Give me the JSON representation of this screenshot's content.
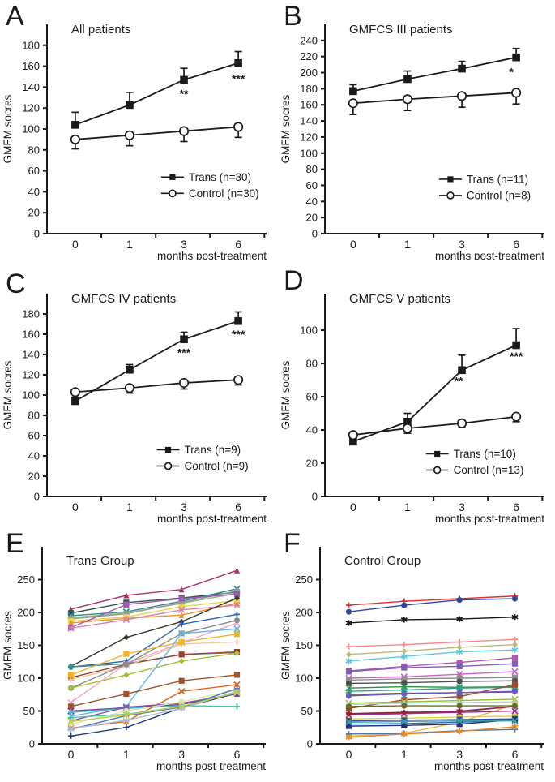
{
  "figure": {
    "x_axis_label": "months post-treatment",
    "y_axis_label": "GMFM socres",
    "axis_color": "#1a1a1a",
    "background": "#ffffff"
  },
  "chart_data": [
    {
      "letter": "A",
      "title": "All patients",
      "type": "line",
      "xlabel": "months post-treatment",
      "ylabel": "GMFM socres",
      "categories": [
        "0",
        "1",
        "3",
        "6"
      ],
      "yticks": [
        0,
        20,
        40,
        60,
        80,
        100,
        120,
        140,
        160,
        180
      ],
      "ymax": 200,
      "series": [
        {
          "name": "Trans (n=30)",
          "marker": "square",
          "color": "#1a1a1a",
          "values": [
            104,
            123,
            147,
            163
          ],
          "errors": [
            12,
            12,
            11,
            11
          ],
          "error_direction": "up"
        },
        {
          "name": "Control (n=30)",
          "marker": "circle-open",
          "color": "#1a1a1a",
          "values": [
            90,
            94,
            98,
            102
          ],
          "errors": [
            9,
            10,
            10,
            10
          ],
          "error_direction": "down"
        }
      ],
      "significance": [
        {
          "ci": 2,
          "y": 130,
          "dx": 0,
          "text": "**"
        },
        {
          "ci": 3,
          "y": 144,
          "dx": 0,
          "text": "***"
        }
      ],
      "legend": {
        "fx": 0.52,
        "fy": 0.73
      }
    },
    {
      "letter": "B",
      "title": "GMFCS III patients",
      "type": "line",
      "xlabel": "months post-treatment",
      "ylabel": "GMFM socres",
      "categories": [
        "0",
        "1",
        "3",
        "6"
      ],
      "yticks": [
        0,
        20,
        40,
        60,
        80,
        100,
        120,
        140,
        160,
        180,
        200,
        220,
        240
      ],
      "ymax": 260,
      "series": [
        {
          "name": "Trans (n=11)",
          "marker": "square",
          "color": "#1a1a1a",
          "values": [
            177,
            192,
            205,
            219
          ],
          "errors": [
            8,
            10,
            9,
            11
          ],
          "error_direction": "up"
        },
        {
          "name": "Control (n=8)",
          "marker": "circle-open",
          "color": "#1a1a1a",
          "values": [
            162,
            167,
            171,
            175
          ],
          "errors": [
            14,
            14,
            14,
            14
          ],
          "error_direction": "down"
        }
      ],
      "significance": [
        {
          "ci": 3,
          "y": 196,
          "dx": -6,
          "text": "*"
        }
      ],
      "legend": {
        "fx": 0.52,
        "fy": 0.74
      }
    },
    {
      "letter": "C",
      "title": "GMFCS IV patients",
      "type": "line",
      "xlabel": "months post-treatment",
      "ylabel": "GMFM socres",
      "categories": [
        "0",
        "1",
        "3",
        "6"
      ],
      "yticks": [
        0,
        20,
        40,
        60,
        80,
        100,
        120,
        140,
        160,
        180
      ],
      "ymax": 200,
      "series": [
        {
          "name": "Trans (n=9)",
          "marker": "square",
          "color": "#1a1a1a",
          "values": [
            94,
            125,
            155,
            173
          ],
          "errors": [
            4,
            5,
            7,
            9
          ],
          "error_direction": "up"
        },
        {
          "name": "Control (n=9)",
          "marker": "circle-open",
          "color": "#1a1a1a",
          "values": [
            103,
            107,
            112,
            115
          ],
          "errors": [
            6,
            5,
            6,
            5
          ],
          "error_direction": "down"
        }
      ],
      "significance": [
        {
          "ci": 2,
          "y": 138,
          "dx": 0,
          "text": "***"
        },
        {
          "ci": 3,
          "y": 156,
          "dx": 0,
          "text": "***"
        }
      ],
      "legend": {
        "fx": 0.5,
        "fy": 0.77
      }
    },
    {
      "letter": "D",
      "title": "GMFCS V patients",
      "type": "line",
      "xlabel": "months post-treatment",
      "ylabel": "GMFM socres",
      "categories": [
        "0",
        "1",
        "3",
        "6"
      ],
      "yticks": [
        0,
        20,
        40,
        60,
        80,
        100
      ],
      "ymax": 122,
      "series": [
        {
          "name": "Trans (n=10)",
          "marker": "square",
          "color": "#1a1a1a",
          "values": [
            33,
            45,
            76,
            91
          ],
          "errors": [
            2,
            5,
            9,
            10
          ],
          "error_direction": "up"
        },
        {
          "name": "Control (n=13)",
          "marker": "circle-open",
          "color": "#1a1a1a",
          "values": [
            37,
            41,
            44,
            48
          ],
          "errors": [
            3,
            3,
            2,
            3
          ],
          "error_direction": "down"
        }
      ],
      "significance": [
        {
          "ci": 2,
          "y": 67,
          "dx": -4,
          "text": "**"
        },
        {
          "ci": 3,
          "y": 82,
          "dx": 0,
          "text": "***"
        }
      ],
      "legend": {
        "fx": 0.46,
        "fy": 0.79
      }
    },
    {
      "letter": "E",
      "title": "Trans Group",
      "type": "multi",
      "xlabel": "months post-treatment",
      "ylabel": "GMFM socres",
      "categories": [
        "0",
        "1",
        "3",
        "6"
      ],
      "yticks": [
        0,
        50,
        100,
        150,
        200,
        250
      ],
      "ymax": 300,
      "lines": [
        {
          "color": "#a8336e",
          "marker": "triangle",
          "values": [
            205,
            226,
            235,
            264
          ]
        },
        {
          "color": "#33514a",
          "marker": "square",
          "values": [
            199,
            215,
            222,
            231
          ]
        },
        {
          "color": "#2e8b8b",
          "marker": "x",
          "values": [
            195,
            201,
            217,
            236
          ]
        },
        {
          "color": "#8fb879",
          "marker": "star",
          "values": [
            192,
            199,
            214,
            229
          ]
        },
        {
          "color": "#9a9a9a",
          "marker": "circle",
          "values": [
            190,
            198,
            215,
            233
          ]
        },
        {
          "color": "#e8d44d",
          "marker": "square",
          "values": [
            187,
            193,
            209,
            218
          ]
        },
        {
          "color": "#ef8f2e",
          "marker": "triangle",
          "values": [
            184,
            191,
            196,
            214
          ]
        },
        {
          "color": "#9b59b6",
          "marker": "square",
          "values": [
            177,
            212,
            221,
            228
          ]
        },
        {
          "color": "#d884a8",
          "marker": "x",
          "values": [
            176,
            189,
            204,
            211
          ]
        },
        {
          "color": "#3a3a2e",
          "marker": "diamond",
          "values": [
            118,
            162,
            186,
            222
          ]
        },
        {
          "color": "#2f62ad",
          "marker": "plus",
          "values": [
            117,
            126,
            182,
            197
          ]
        },
        {
          "color": "#2f958c",
          "marker": "circle",
          "values": [
            117,
            122,
            136,
            139
          ]
        },
        {
          "color": "#a23f2a",
          "marker": "square",
          "values": [
            101,
            121,
            136,
            140
          ]
        },
        {
          "color": "#edc9a3",
          "marker": "plus",
          "values": [
            98,
            118,
            152,
            155
          ]
        },
        {
          "color": "#f2a6c6",
          "marker": "x",
          "values": [
            63,
            122,
            154,
            184
          ]
        },
        {
          "color": "#8c8c8c",
          "marker": "circle",
          "values": [
            85,
            121,
            168,
            188
          ]
        },
        {
          "color": "#9fc131",
          "marker": "diamond",
          "values": [
            85,
            105,
            126,
            138
          ]
        },
        {
          "color": "#f0b428",
          "marker": "square",
          "values": [
            105,
            137,
            155,
            167
          ]
        },
        {
          "color": "#63b8e8",
          "marker": "x",
          "values": [
            42,
            57,
            168,
            175
          ]
        },
        {
          "color": "#a0522d",
          "marker": "square",
          "values": [
            57,
            76,
            96,
            105
          ]
        },
        {
          "color": "#7d3c98",
          "marker": "x",
          "values": [
            50,
            55,
            60,
            77
          ]
        },
        {
          "color": "#45b8c8",
          "marker": "plus",
          "values": [
            48,
            54,
            58,
            57
          ]
        },
        {
          "color": "#e2641e",
          "marker": "x",
          "values": [
            24,
            34,
            80,
            90
          ]
        },
        {
          "color": "#8a4fb0",
          "marker": "triangle",
          "values": [
            35,
            56,
            62,
            76
          ]
        },
        {
          "color": "#dde8a8",
          "marker": "circle",
          "values": [
            30,
            50,
            64,
            83
          ]
        },
        {
          "color": "#1f3d7a",
          "marker": "plus",
          "values": [
            12,
            25,
            55,
            77
          ]
        },
        {
          "color": "#4a76b8",
          "marker": "plus",
          "values": [
            22,
            43,
            56,
            84
          ]
        },
        {
          "color": "#52c2a8",
          "marker": "plus",
          "values": [
            40,
            45,
            57,
            57
          ]
        },
        {
          "color": "#aebfd4",
          "marker": "star",
          "values": [
            23,
            36,
            54,
            80
          ]
        },
        {
          "color": "#c8c84a",
          "marker": "x",
          "values": [
            34,
            44,
            57,
            78
          ]
        }
      ]
    },
    {
      "letter": "F",
      "title": "Control Group",
      "type": "multi",
      "xlabel": "months post-treatment",
      "ylabel": "GMFM socres",
      "categories": [
        "0",
        "1",
        "3",
        "6"
      ],
      "yticks": [
        0,
        50,
        100,
        150,
        200,
        250
      ],
      "ymax": 300,
      "lines": [
        {
          "color": "#e03030",
          "marker": "plus",
          "values": [
            211,
            217,
            221,
            225
          ]
        },
        {
          "color": "#31479e",
          "marker": "circle",
          "values": [
            201,
            211,
            219,
            221
          ]
        },
        {
          "color": "#1a1a1a",
          "marker": "star",
          "values": [
            184,
            189,
            190,
            193
          ]
        },
        {
          "color": "#f48a8a",
          "marker": "plus",
          "values": [
            148,
            151,
            155,
            159
          ]
        },
        {
          "color": "#b8b87a",
          "marker": "diamond",
          "values": [
            136,
            141,
            147,
            151
          ]
        },
        {
          "color": "#5fc8dc",
          "marker": "star",
          "values": [
            126,
            133,
            140,
            143
          ]
        },
        {
          "color": "#b455b4",
          "marker": "square",
          "values": [
            111,
            118,
            124,
            131
          ]
        },
        {
          "color": "#7d5fb4",
          "marker": "square",
          "values": [
            110,
            116,
            118,
            122
          ]
        },
        {
          "color": "#c861c8",
          "marker": "x",
          "values": [
            100,
            102,
            106,
            110
          ]
        },
        {
          "color": "#8f8f8f",
          "marker": "square",
          "values": [
            97,
            99,
            100,
            101
          ]
        },
        {
          "color": "#4f4f4f",
          "marker": "circle",
          "values": [
            92,
            93,
            95,
            96
          ]
        },
        {
          "color": "#2a8f4a",
          "marker": "x",
          "values": [
            85,
            87,
            86,
            87
          ]
        },
        {
          "color": "#2fa383",
          "marker": "star",
          "values": [
            80,
            82,
            85,
            86
          ]
        },
        {
          "color": "#5a5a2a",
          "marker": "diamond",
          "values": [
            75,
            77,
            78,
            79
          ]
        },
        {
          "color": "#9c4a2a",
          "marker": "square",
          "values": [
            54,
            67,
            72,
            90
          ]
        },
        {
          "color": "#6a5acd",
          "marker": "circle",
          "values": [
            73,
            76,
            78,
            80
          ]
        },
        {
          "color": "#9cb83a",
          "marker": "x",
          "values": [
            62,
            64,
            66,
            68
          ]
        },
        {
          "color": "#aad8c8",
          "marker": "plus",
          "values": [
            60,
            62,
            63,
            64
          ]
        },
        {
          "color": "#8a2fa8",
          "marker": "diamond",
          "values": [
            45,
            47,
            50,
            57
          ]
        },
        {
          "color": "#e8b83a",
          "marker": "star",
          "values": [
            12,
            16,
            33,
            60
          ]
        },
        {
          "color": "#d8d83a",
          "marker": "square",
          "values": [
            38,
            39,
            41,
            42
          ]
        },
        {
          "color": "#a12aa1",
          "marker": "x",
          "values": [
            44,
            46,
            48,
            50
          ]
        },
        {
          "color": "#32509e",
          "marker": "square",
          "values": [
            35,
            36,
            37,
            38
          ]
        },
        {
          "color": "#2a6ac0",
          "marker": "circle",
          "values": [
            30,
            31,
            33,
            36
          ]
        },
        {
          "color": "#22317a",
          "marker": "square",
          "values": [
            27,
            28,
            30,
            37
          ]
        },
        {
          "color": "#3fa0a0",
          "marker": "x",
          "values": [
            33,
            34,
            35,
            35
          ]
        },
        {
          "color": "#8a2a2a",
          "marker": "diamond",
          "values": [
            46,
            48,
            49,
            57
          ]
        },
        {
          "color": "#4878b0",
          "marker": "plus",
          "values": [
            15,
            16,
            20,
            22
          ]
        },
        {
          "color": "#e8852a",
          "marker": "star",
          "values": [
            10,
            15,
            19,
            26
          ]
        },
        {
          "color": "#6a6a2a",
          "marker": "circle",
          "values": [
            57,
            58,
            58,
            58
          ]
        }
      ]
    }
  ]
}
